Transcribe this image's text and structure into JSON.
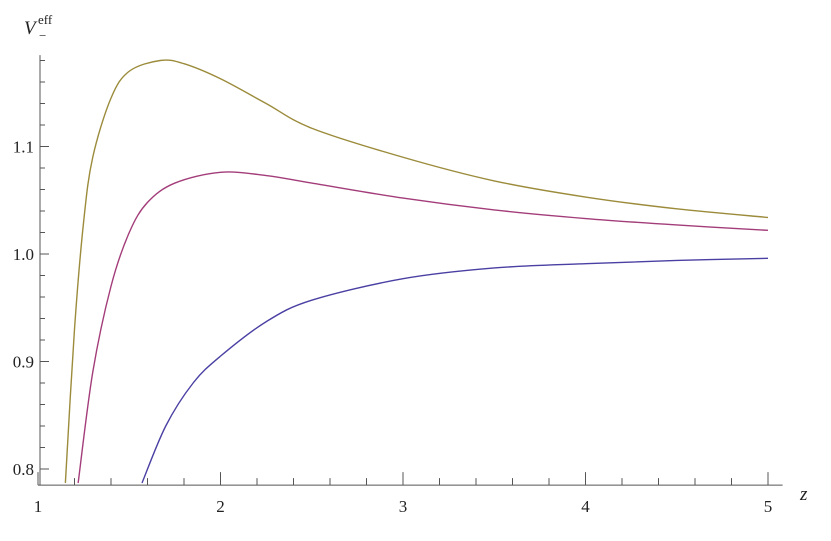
{
  "chart_data": {
    "type": "line",
    "title": "",
    "xlabel": "z",
    "ylabel": {
      "base": "V",
      "subscript": "−",
      "superscript": "eff"
    },
    "xlim": [
      1,
      5.08
    ],
    "ylim": [
      0.785,
      1.185
    ],
    "x_ticks": [
      "1",
      "2",
      "3",
      "4",
      "5"
    ],
    "y_ticks": [
      "0.8",
      "0.9",
      "1.0",
      "1.1"
    ],
    "grid": false,
    "legend": "none",
    "series": [
      {
        "color": "#9b8b3b",
        "points": [
          [
            1.15,
            0.787
          ],
          [
            1.2,
            0.93
          ],
          [
            1.25,
            1.03
          ],
          [
            1.3,
            1.09
          ],
          [
            1.4,
            1.145
          ],
          [
            1.5,
            1.17
          ],
          [
            1.67,
            1.18
          ],
          [
            1.8,
            1.177
          ],
          [
            2.0,
            1.163
          ],
          [
            2.25,
            1.14
          ],
          [
            2.5,
            1.117
          ],
          [
            3.0,
            1.09
          ],
          [
            3.5,
            1.068
          ],
          [
            4.0,
            1.053
          ],
          [
            4.5,
            1.042
          ],
          [
            5.0,
            1.034
          ]
        ]
      },
      {
        "color": "#a33d7a",
        "points": [
          [
            1.22,
            0.787
          ],
          [
            1.3,
            0.89
          ],
          [
            1.4,
            0.97
          ],
          [
            1.5,
            1.02
          ],
          [
            1.6,
            1.048
          ],
          [
            1.75,
            1.066
          ],
          [
            2.0,
            1.076
          ],
          [
            2.25,
            1.073
          ],
          [
            2.5,
            1.066
          ],
          [
            3.0,
            1.052
          ],
          [
            3.5,
            1.041
          ],
          [
            4.0,
            1.033
          ],
          [
            4.5,
            1.027
          ],
          [
            5.0,
            1.022
          ]
        ]
      },
      {
        "color": "#4a40a3",
        "points": [
          [
            1.57,
            0.787
          ],
          [
            1.7,
            0.84
          ],
          [
            1.85,
            0.88
          ],
          [
            2.0,
            0.905
          ],
          [
            2.25,
            0.937
          ],
          [
            2.5,
            0.957
          ],
          [
            3.0,
            0.977
          ],
          [
            3.5,
            0.987
          ],
          [
            4.0,
            0.991
          ],
          [
            4.5,
            0.994
          ],
          [
            5.0,
            0.996
          ]
        ]
      }
    ]
  }
}
